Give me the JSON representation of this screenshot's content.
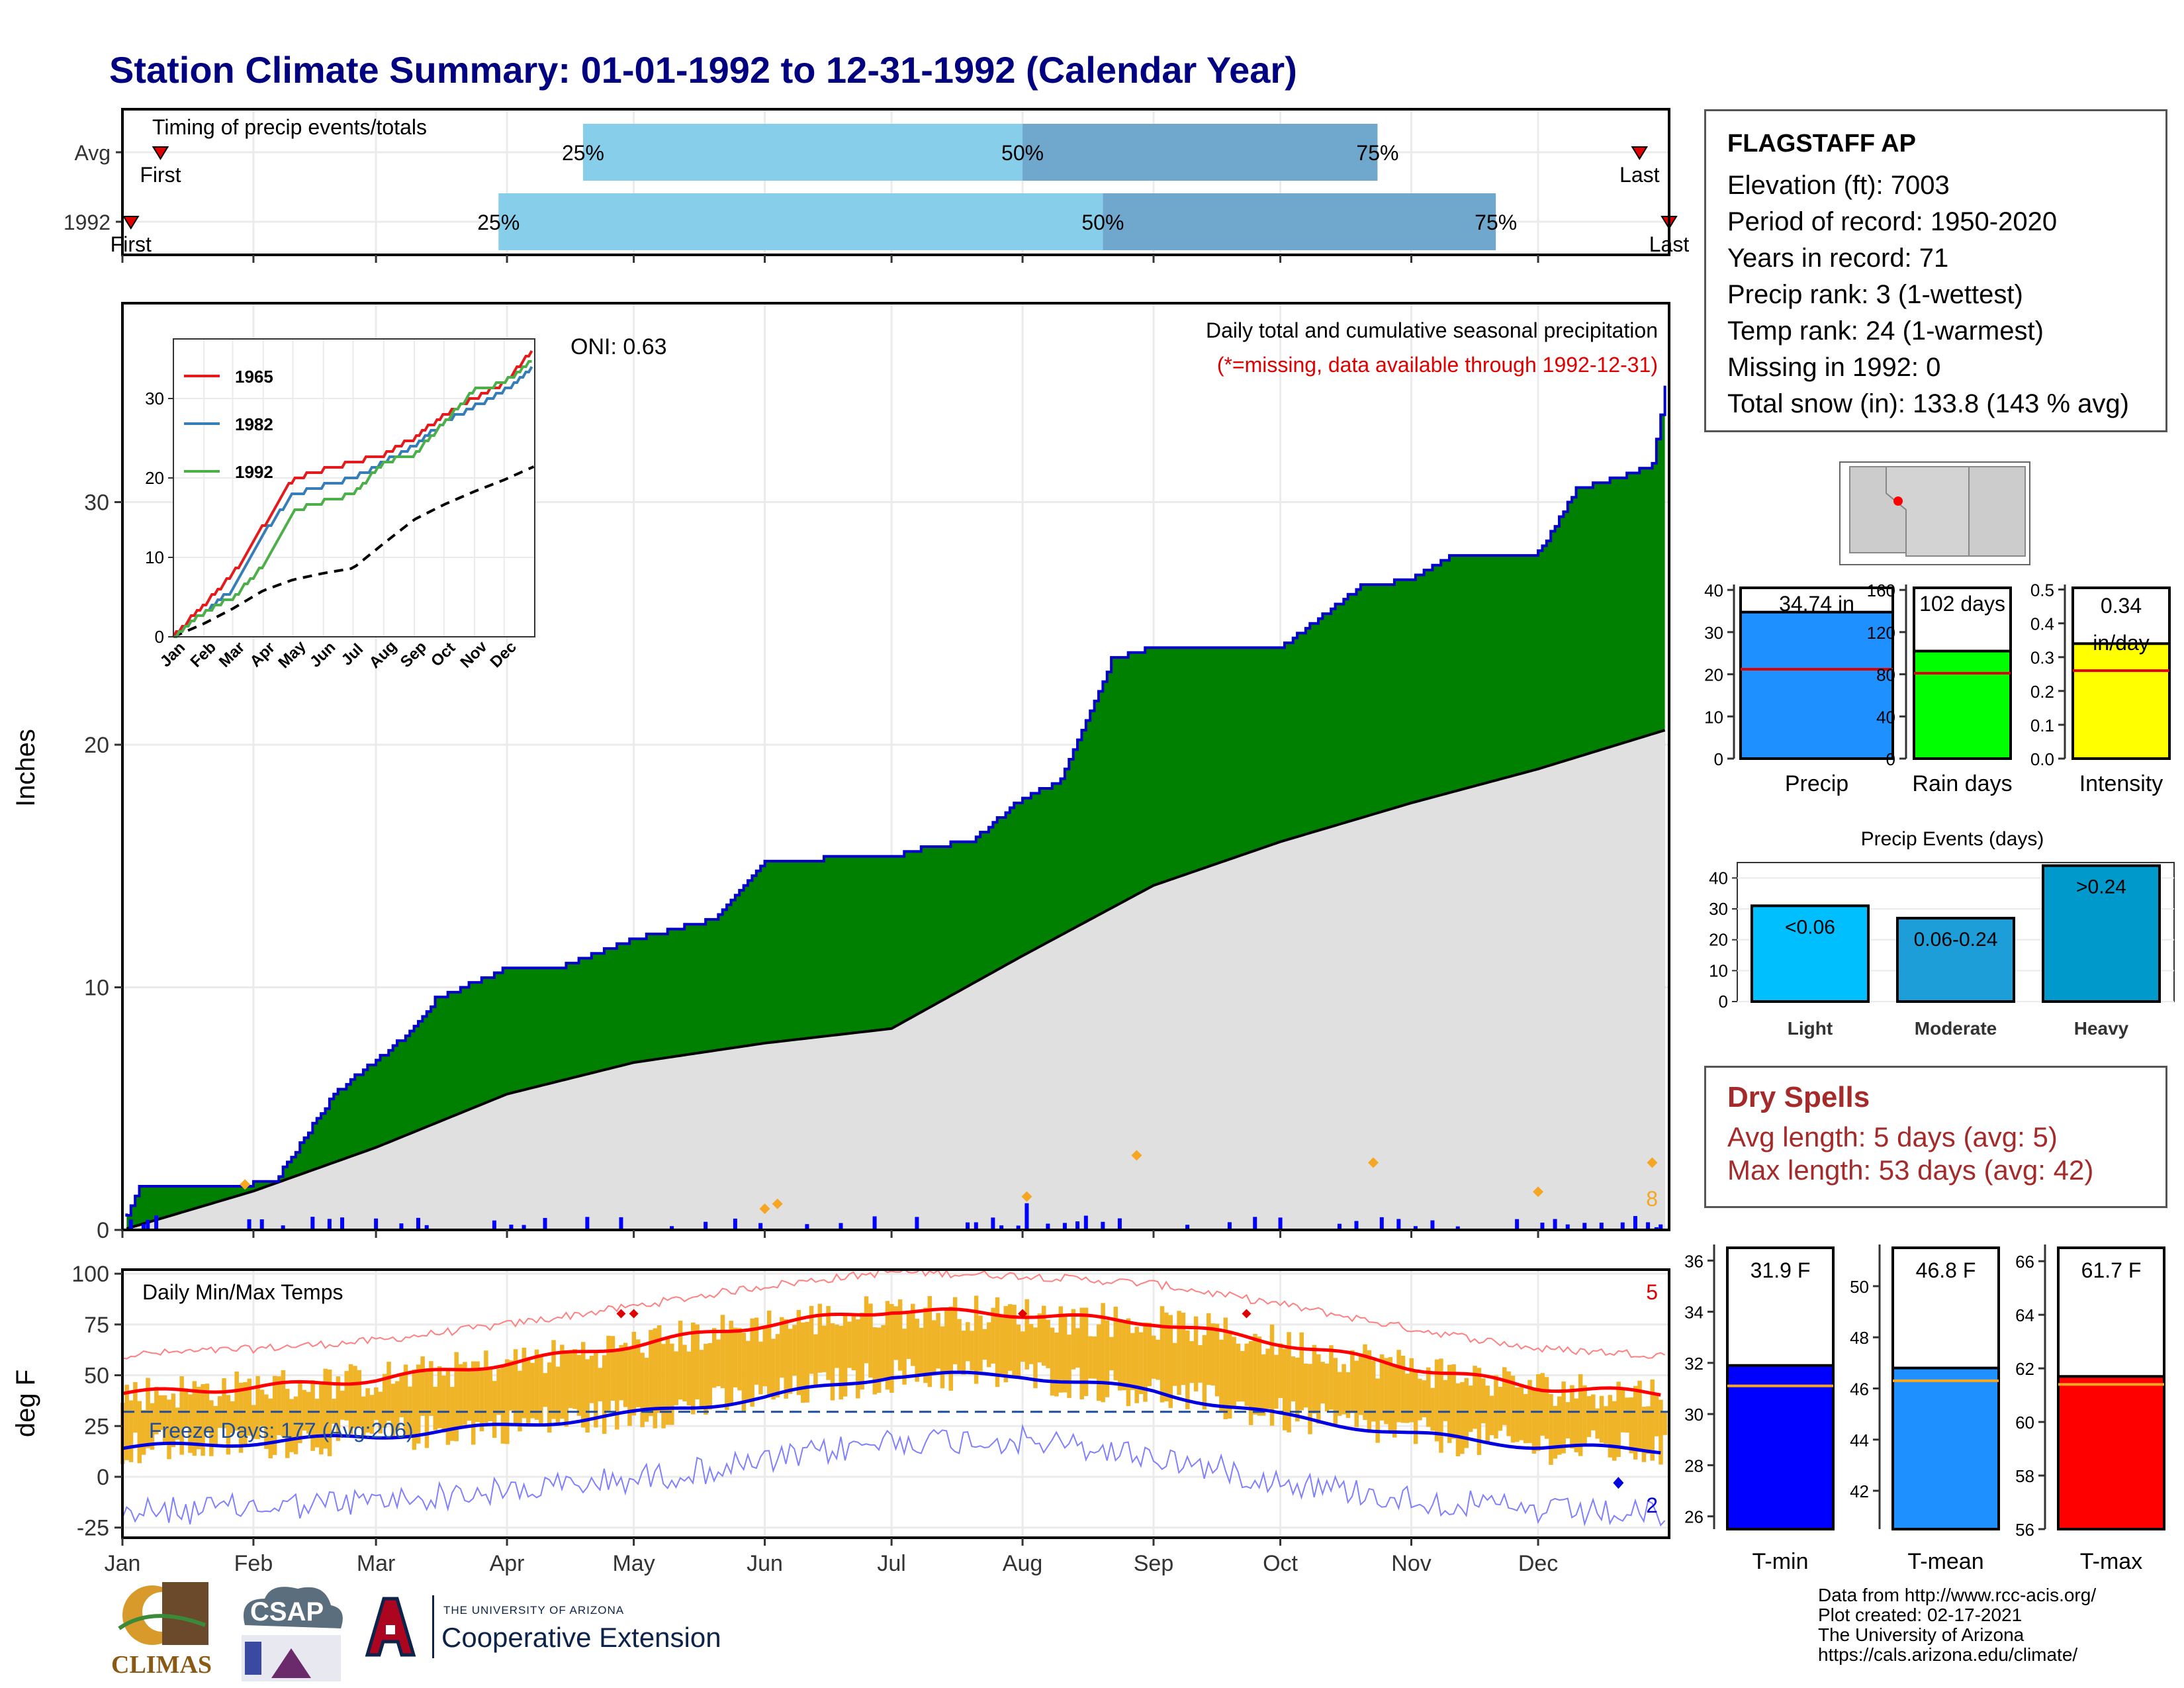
{
  "title": "Station Climate Summary: 01-01-1992 to 12-31-1992 (Calendar Year)",
  "months": [
    "Jan",
    "Feb",
    "Mar",
    "Apr",
    "May",
    "Jun",
    "Jul",
    "Aug",
    "Sep",
    "Oct",
    "Nov",
    "Dec"
  ],
  "timing": {
    "label": "Timing of precip events/totals",
    "rows": [
      {
        "name": "Avg",
        "q25": "25%",
        "q50": "50%",
        "q75": "75%",
        "first": "First",
        "last": "Last",
        "first_doy": 9,
        "p25_doy": 109,
        "p50_doy": 213,
        "p75_doy": 297,
        "last_doy": 359
      },
      {
        "name": "1992",
        "q25": "25%",
        "q50": "50%",
        "q75": "75%",
        "first": "First",
        "last": "Last",
        "first_doy": 2,
        "p25_doy": 89,
        "p50_doy": 232,
        "p75_doy": 325,
        "last_doy": 366
      }
    ],
    "colors": {
      "light": "#87ceeb",
      "dark": "#6fa8cc",
      "marker": "#e00000"
    }
  },
  "precip_panel": {
    "ylabel": "Inches",
    "yticks": [
      "0",
      "10",
      "20",
      "30"
    ],
    "oni": "ONI: 0.63",
    "caption": "Daily total and cumulative seasonal precipitation",
    "missing_note": "(*=missing, data available through 1992-12-31)",
    "side_label": "8",
    "colors": {
      "cumulative": "#008000",
      "outline": "#0000cc",
      "avg": "#e0e0e0",
      "daily": "#0000ff"
    }
  },
  "inset": {
    "legend": [
      "1965",
      "1982",
      "1992"
    ],
    "colors": [
      "#e41a1c",
      "#377eb8",
      "#4daf4a"
    ],
    "yticks": [
      "0",
      "10",
      "20",
      "30"
    ],
    "months": [
      "Jan",
      "Feb",
      "Mar",
      "Apr",
      "May",
      "Jun",
      "Jul",
      "Aug",
      "Sep",
      "Oct",
      "Nov",
      "Dec"
    ]
  },
  "temp_panel": {
    "ylabel": "deg F",
    "title": "Daily Min/Max Temps",
    "freeze": "Freeze Days: 177 (Avg:206)",
    "yticks": [
      "100",
      "75",
      "50",
      "25",
      "0",
      "-25"
    ],
    "record_high_count": "5",
    "record_low_count": "2"
  },
  "station": {
    "name": "FLAGSTAFF AP",
    "lines": [
      "Elevation (ft): 7003",
      "Period of record: 1950-2020",
      "Years in record: 71",
      "Precip rank: 3 (1-wettest)",
      "Temp rank: 24 (1-warmest)",
      "Missing in 1992: 0",
      "Total snow (in): 133.8 (143 % avg)"
    ]
  },
  "dry_spells": {
    "title": "Dry Spells",
    "avg": "Avg length: 5 days (avg: 5)",
    "max": "Max length: 53 days (avg: 42)"
  },
  "footer": [
    "Data from http://www.rcc-acis.org/",
    "Plot created: 02-17-2021",
    "The University of Arizona",
    "https://cals.arizona.edu/climate/"
  ],
  "logos": {
    "climas": "CLIMAS",
    "csap": "CSAP",
    "ua_small": "THE UNIVERSITY OF ARIZONA",
    "ua_big": "Cooperative Extension"
  },
  "chart_data": [
    {
      "type": "area",
      "name": "cumulative precipitation 1992",
      "x": [
        "01-01",
        "01-05",
        "02-01",
        "02-06",
        "02-20",
        "03-08",
        "03-15",
        "04-01",
        "04-15",
        "05-01",
        "05-20",
        "06-01",
        "06-15",
        "07-01",
        "07-10",
        "07-20",
        "08-01",
        "08-10",
        "08-22",
        "09-01",
        "10-01",
        "10-20",
        "11-01",
        "11-10",
        "12-01",
        "12-10",
        "12-20",
        "12-28",
        "12-31"
      ],
      "y": [
        0.3,
        1.8,
        1.9,
        2.0,
        5.6,
        8.0,
        9.5,
        10.8,
        10.9,
        12.0,
        12.8,
        15.2,
        15.3,
        15.4,
        15.8,
        16.0,
        17.8,
        18.5,
        23.5,
        24.0,
        24.0,
        26.5,
        26.8,
        27.8,
        27.9,
        30.5,
        31.0,
        31.5,
        34.74
      ]
    },
    {
      "type": "area",
      "name": "average cumulative precipitation",
      "x": [
        "01-01",
        "02-01",
        "03-01",
        "04-01",
        "05-01",
        "06-01",
        "07-01",
        "08-01",
        "09-01",
        "10-01",
        "11-01",
        "12-01",
        "12-31"
      ],
      "y": [
        0,
        1.6,
        3.4,
        5.6,
        6.9,
        7.7,
        8.3,
        11.3,
        14.2,
        16.0,
        17.6,
        19.0,
        20.6
      ]
    },
    {
      "type": "bar",
      "name": "daily precip ranges",
      "categories": [
        "Precip",
        "Rain days",
        "Intensity"
      ],
      "values": [
        34.74,
        102,
        0.34
      ],
      "labels": [
        "34.74 in",
        "102 days",
        "0.34 in/day"
      ],
      "averages": [
        21.2,
        81,
        0.26
      ],
      "ylim": [
        [
          0,
          40
        ],
        [
          0,
          160
        ],
        [
          0,
          0.5
        ]
      ],
      "yticks": [
        [
          "0",
          "10",
          "20",
          "30",
          "40"
        ],
        [
          "0",
          "40",
          "80",
          "120",
          "160"
        ],
        [
          "0.0",
          "0.1",
          "0.2",
          "0.3",
          "0.4",
          "0.5"
        ]
      ],
      "colors": [
        "#1e90ff",
        "#00ff00",
        "#ffff00"
      ]
    },
    {
      "type": "bar",
      "title": "Precip Events (days)",
      "categories": [
        "Light",
        "Moderate",
        "Heavy"
      ],
      "values": [
        31,
        27,
        44
      ],
      "labels": [
        "<0.06",
        "0.06-0.24",
        ">0.24"
      ],
      "ylim": [
        0,
        45
      ],
      "yticks": [
        "0",
        "10",
        "20",
        "30",
        "40"
      ],
      "colors": [
        "#00bfff",
        "#1e9ed8",
        "#0099cc"
      ]
    },
    {
      "type": "bar",
      "name": "mean temperatures",
      "categories": [
        "T-min",
        "T-mean",
        "T-max"
      ],
      "values": [
        31.9,
        46.8,
        61.7
      ],
      "labels": [
        "31.9 F",
        "46.8 F",
        "61.7 F"
      ],
      "averages": [
        31.1,
        46.3,
        61.4
      ],
      "ylim": [
        [
          25.5,
          36.5
        ],
        [
          40.5,
          51.5
        ],
        [
          56,
          66.5
        ]
      ],
      "yticks": [
        [
          "26",
          "28",
          "30",
          "32",
          "34",
          "36"
        ],
        [
          "42",
          "44",
          "46",
          "48",
          "50"
        ],
        [
          "56",
          "58",
          "60",
          "62",
          "64",
          "66"
        ]
      ],
      "colors": [
        "#0000ff",
        "#1e90ff",
        "#ff0000"
      ]
    },
    {
      "type": "line",
      "name": "daily temperatures",
      "ylim": [
        -30,
        102
      ],
      "series": [
        {
          "name": "avg max",
          "x": [
            "01-01",
            "02-01",
            "03-01",
            "04-01",
            "05-01",
            "06-01",
            "07-01",
            "08-01",
            "09-01",
            "10-01",
            "11-01",
            "12-01",
            "12-31"
          ],
          "y": [
            41,
            44,
            48,
            56,
            65,
            75,
            82,
            80,
            76,
            66,
            54,
            44,
            41
          ]
        },
        {
          "name": "avg min",
          "x": [
            "01-01",
            "02-01",
            "03-01",
            "04-01",
            "05-01",
            "06-01",
            "07-01",
            "08-01",
            "09-01",
            "10-01",
            "11-01",
            "12-01",
            "12-31"
          ],
          "y": [
            14,
            17,
            20,
            25,
            31,
            39,
            50,
            50,
            42,
            30,
            21,
            15,
            13
          ]
        }
      ]
    }
  ]
}
